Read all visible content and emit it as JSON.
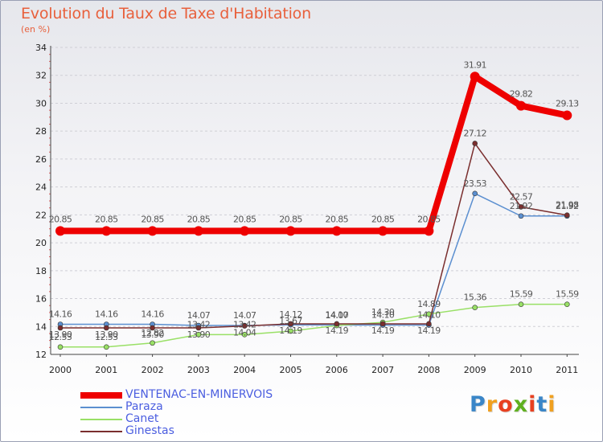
{
  "title": "Evolution du Taux de Taxe d'Habitation",
  "subtitle": "(en %)",
  "logo": {
    "text": "Proxiti",
    "letter_colors": [
      "#3a86c8",
      "#f0a020",
      "#e84020",
      "#60b020",
      "#e84020",
      "#3a86c8",
      "#f0a020"
    ]
  },
  "chart_data": {
    "type": "line",
    "title": "Evolution du Taux de Taxe d'Habitation",
    "ylabel": "(en %)",
    "xlabel": "",
    "x": [
      "2000",
      "2001",
      "2002",
      "2003",
      "2004",
      "2005",
      "2006",
      "2007",
      "2008",
      "2009",
      "2010",
      "2011"
    ],
    "ylim": [
      12,
      34
    ],
    "yticks": [
      "12",
      "14",
      "16",
      "18",
      "20",
      "22",
      "24",
      "26",
      "28",
      "30",
      "32",
      "34"
    ],
    "grid": "horizontal",
    "legend_position": "bottom-left",
    "series": [
      {
        "name": "VENTENAC-EN-MINERVOIS",
        "color": "#ee0000",
        "emphasis": "thick",
        "values": [
          20.85,
          20.85,
          20.85,
          20.85,
          20.85,
          20.85,
          20.85,
          20.85,
          20.85,
          31.91,
          29.82,
          29.13
        ],
        "labels": [
          "20.85",
          "20.85",
          "20.85",
          "20.85",
          "20.85",
          "20.85",
          "20.85",
          "20.85",
          "20.85",
          "31.91",
          "29.82",
          "29.13"
        ]
      },
      {
        "name": "Paraza",
        "color": "#5b8fd0",
        "emphasis": "thin",
        "values": [
          14.16,
          14.16,
          14.16,
          14.07,
          14.07,
          14.12,
          14.1,
          14.1,
          14.1,
          23.53,
          21.92,
          21.92
        ],
        "labels": [
          "14.16",
          "14.16",
          "14.16",
          "14.07",
          "14.07",
          "14.12",
          "14.10",
          "14.10",
          "14.10",
          "23.53",
          "21.92",
          "21.92"
        ]
      },
      {
        "name": "Canet",
        "color": "#99e066",
        "emphasis": "thin",
        "values": [
          12.53,
          12.53,
          12.82,
          13.42,
          13.42,
          13.67,
          14.07,
          14.3,
          14.89,
          15.36,
          15.59,
          15.59
        ],
        "labels": [
          "12.53",
          "12.53",
          "12.82",
          "13.42",
          "13.42",
          "13.67",
          "14.07",
          "14.30",
          "14.89",
          "15.36",
          "15.59",
          "15.59"
        ]
      },
      {
        "name": "Ginestas",
        "color": "#7a2e2e",
        "emphasis": "thin",
        "values": [
          13.9,
          13.9,
          13.9,
          13.9,
          14.04,
          14.19,
          14.19,
          14.19,
          14.19,
          27.12,
          22.57,
          21.98
        ],
        "labels": [
          "13.90",
          "13.90",
          "13.90",
          "13.90",
          "14.04",
          "14.19",
          "14.19",
          "14.19",
          "14.19",
          "27.12",
          "22.57",
          "21.98"
        ]
      }
    ]
  }
}
